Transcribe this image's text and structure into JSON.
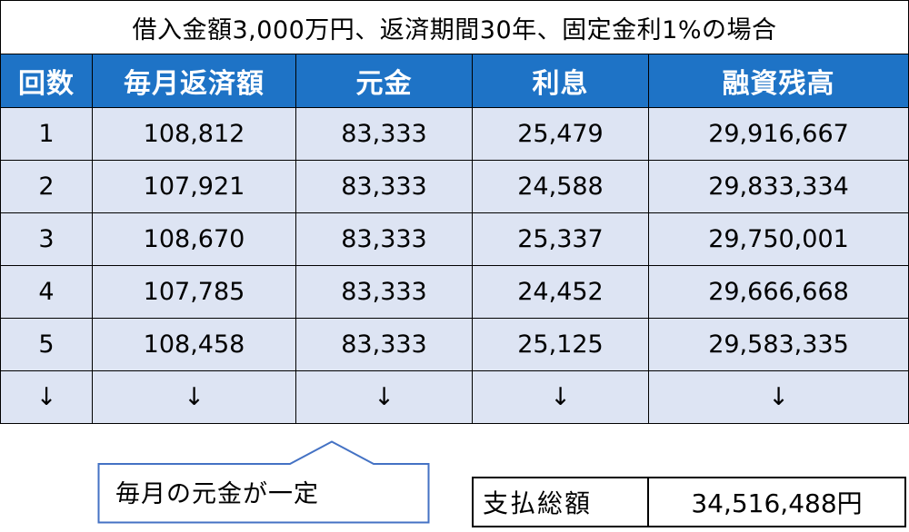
{
  "title": "借入金額3,000万円、返済期間30年、固定金利1%の場合",
  "headers": [
    "回数",
    "毎月返済額",
    "元金",
    "利息",
    "融資残高"
  ],
  "rows": [
    [
      "1",
      "108,812",
      "83,333",
      "25,479",
      "29,916,667"
    ],
    [
      "2",
      "107,921",
      "83,333",
      "24,588",
      "29,833,334"
    ],
    [
      "3",
      "108,670",
      "83,333",
      "25,337",
      "29,750,001"
    ],
    [
      "4",
      "107,785",
      "83,333",
      "24,452",
      "29,666,668"
    ],
    [
      "5",
      "108,458",
      "83,333",
      "25,125",
      "29,583,335"
    ],
    [
      "↓",
      "↓",
      "↓",
      "↓",
      "↓"
    ]
  ],
  "callout": "毎月の元金が一定",
  "total": {
    "label": "支払総額",
    "value": "34,516,488円"
  },
  "colors": {
    "header_bg": "#1e73c6",
    "row_bg": "#dde4f3"
  }
}
